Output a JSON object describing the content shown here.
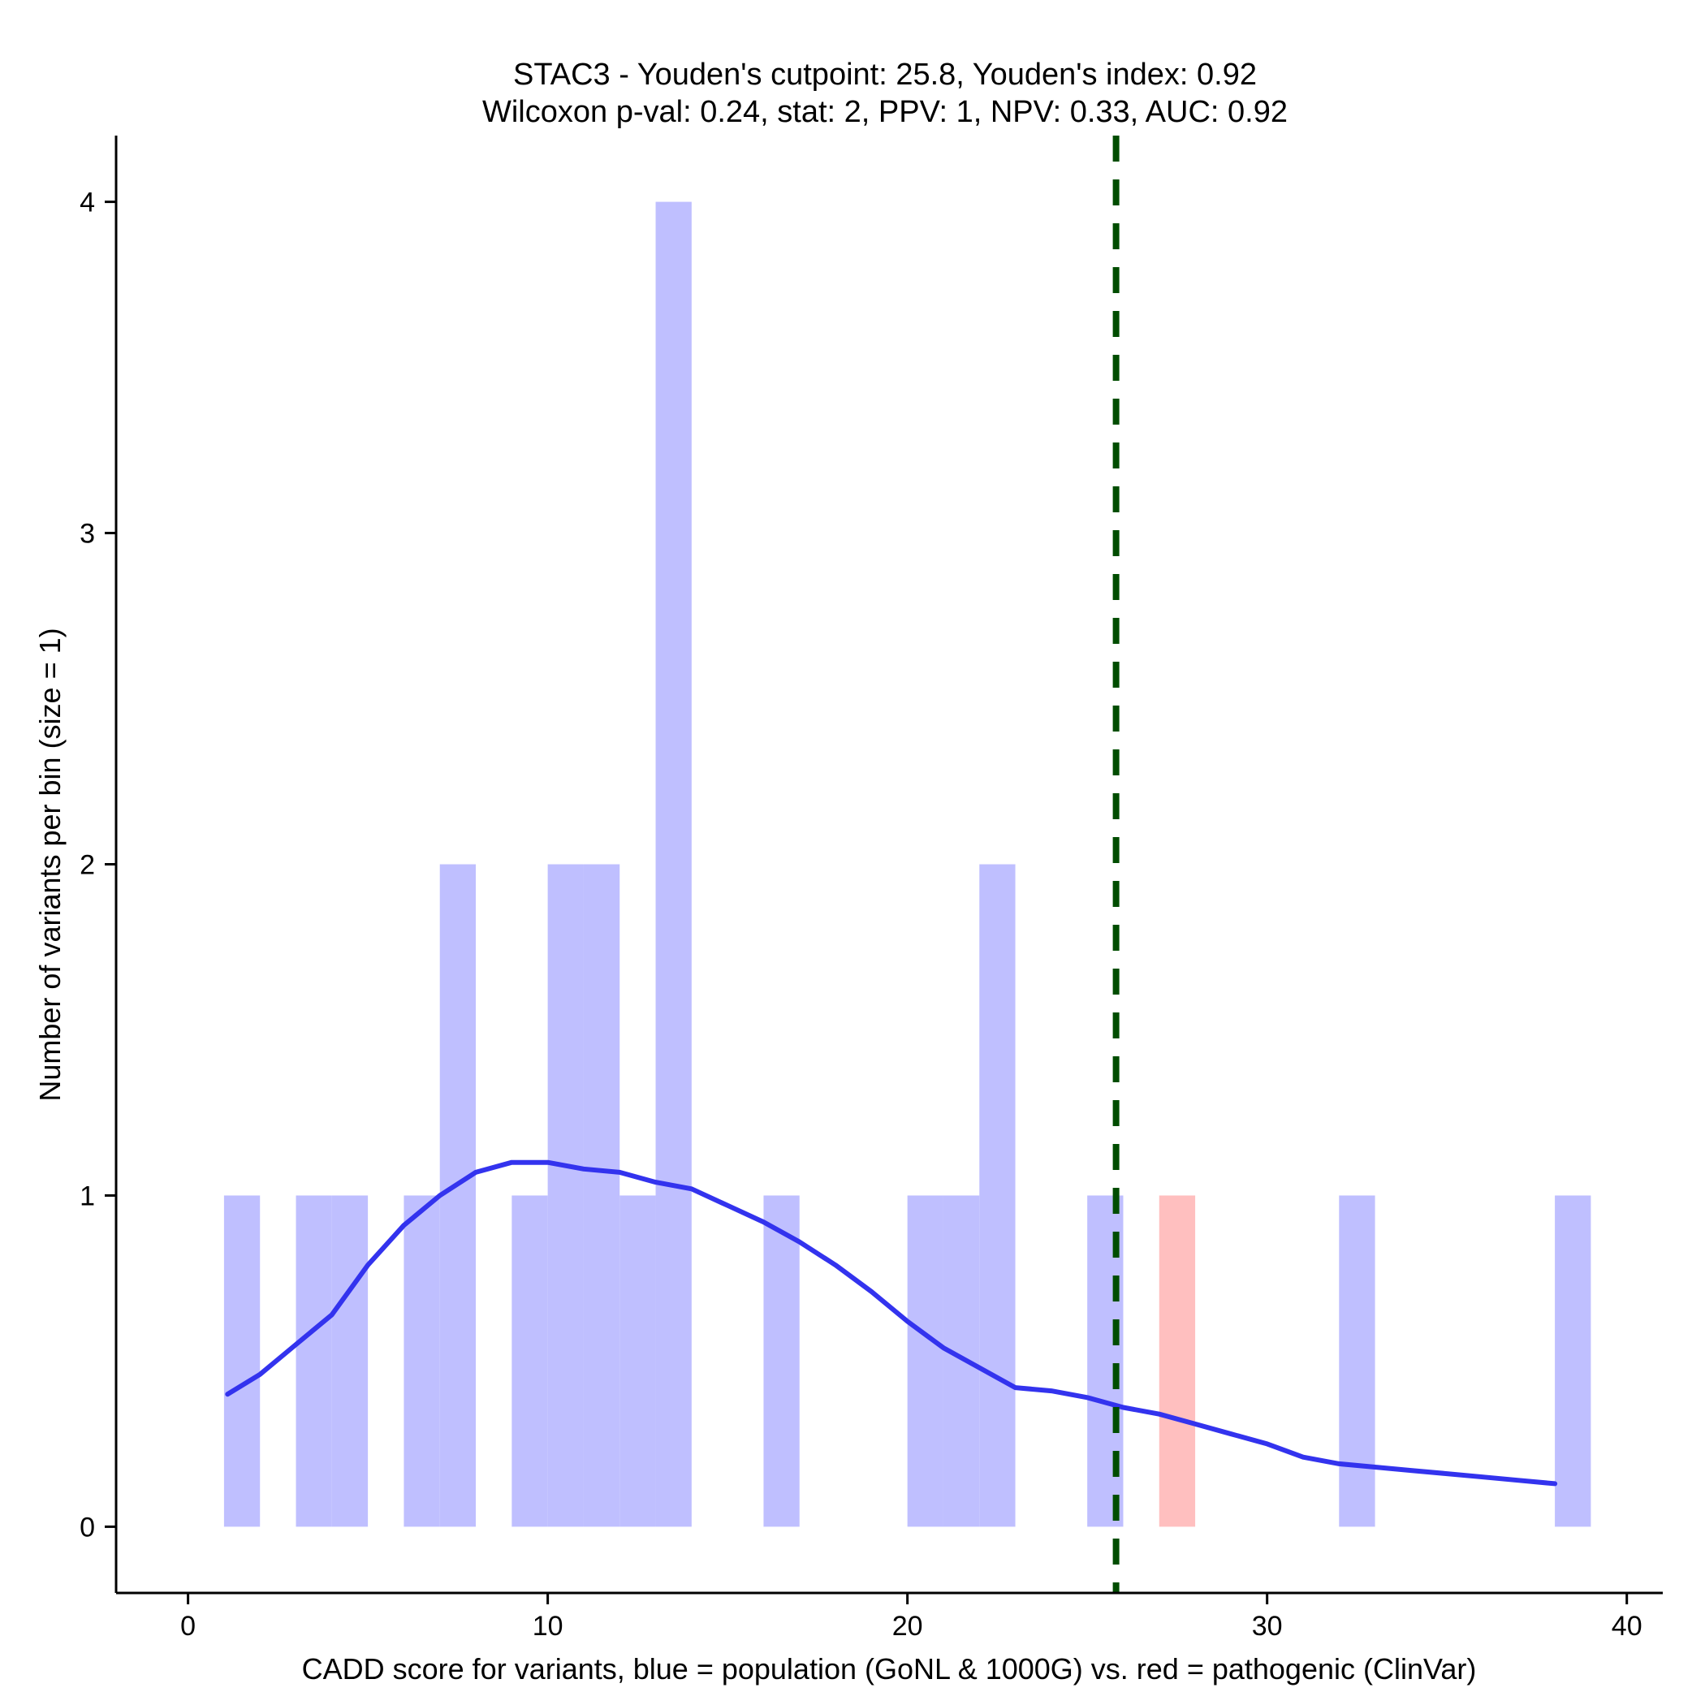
{
  "chart_data": {
    "type": "bar",
    "title_line1": "STAC3 - Youden's cutpoint: 25.8, Youden's index: 0.92",
    "title_line2": "Wilcoxon p-val: 0.24, stat: 2, PPV: 1, NPV: 0.33, AUC: 0.92",
    "xlabel": "CADD score for variants, blue = population (GoNL & 1000G) vs. red = pathogenic (ClinVar)",
    "ylabel": "Number of variants per bin (size = 1)",
    "xlim": [
      -2,
      41
    ],
    "ylim": [
      -0.2,
      4.2
    ],
    "xticks": [
      0,
      10,
      20,
      30,
      40
    ],
    "yticks": [
      0,
      1,
      2,
      3,
      4
    ],
    "bin_width": 1,
    "series": [
      {
        "name": "population (GoNL & 1000G)",
        "color": "#bfbfff",
        "bins": [
          {
            "start": 1,
            "count": 1
          },
          {
            "start": 3,
            "count": 1
          },
          {
            "start": 4,
            "count": 1
          },
          {
            "start": 6,
            "count": 1
          },
          {
            "start": 7,
            "count": 2
          },
          {
            "start": 9,
            "count": 1
          },
          {
            "start": 10,
            "count": 2
          },
          {
            "start": 11,
            "count": 2
          },
          {
            "start": 12,
            "count": 1
          },
          {
            "start": 13,
            "count": 4
          },
          {
            "start": 16,
            "count": 1
          },
          {
            "start": 20,
            "count": 1
          },
          {
            "start": 21,
            "count": 1
          },
          {
            "start": 22,
            "count": 2
          },
          {
            "start": 25,
            "count": 1
          },
          {
            "start": 32,
            "count": 1
          },
          {
            "start": 38,
            "count": 1
          }
        ]
      },
      {
        "name": "pathogenic (ClinVar)",
        "color": "#ffbfbf",
        "bins": [
          {
            "start": 27,
            "count": 1
          }
        ]
      }
    ],
    "density": {
      "name": "population density",
      "color": "#3333ee",
      "points": [
        [
          1.1,
          0.4
        ],
        [
          2,
          0.46
        ],
        [
          3,
          0.55
        ],
        [
          4,
          0.64
        ],
        [
          5,
          0.79
        ],
        [
          6,
          0.91
        ],
        [
          7,
          1.0
        ],
        [
          8,
          1.07
        ],
        [
          9,
          1.1
        ],
        [
          10,
          1.1
        ],
        [
          11,
          1.08
        ],
        [
          12,
          1.07
        ],
        [
          13,
          1.04
        ],
        [
          14,
          1.02
        ],
        [
          15,
          0.97
        ],
        [
          16,
          0.92
        ],
        [
          17,
          0.86
        ],
        [
          18,
          0.79
        ],
        [
          19,
          0.71
        ],
        [
          20,
          0.62
        ],
        [
          21,
          0.54
        ],
        [
          22,
          0.48
        ],
        [
          23,
          0.42
        ],
        [
          24,
          0.41
        ],
        [
          25,
          0.39
        ],
        [
          26,
          0.36
        ],
        [
          27,
          0.34
        ],
        [
          28,
          0.31
        ],
        [
          29,
          0.28
        ],
        [
          30,
          0.25
        ],
        [
          31,
          0.21
        ],
        [
          32,
          0.19
        ],
        [
          33,
          0.18
        ],
        [
          34,
          0.17
        ],
        [
          35,
          0.16
        ],
        [
          36,
          0.15
        ],
        [
          37,
          0.14
        ],
        [
          38,
          0.13
        ]
      ]
    },
    "cutpoint": {
      "x": 25.8,
      "color": "#004d00",
      "style": "dashed"
    }
  }
}
